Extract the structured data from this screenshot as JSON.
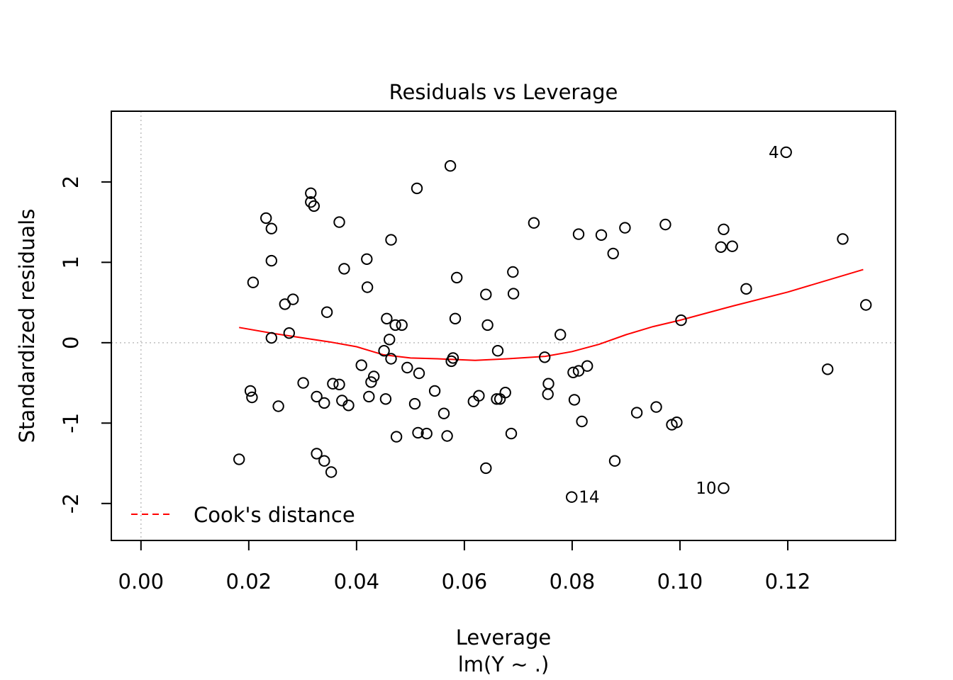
{
  "chart_data": {
    "type": "scatter",
    "title": "Residuals vs Leverage",
    "xlabel": "Leverage",
    "subtitle": "lm(Y ~ .)",
    "ylabel": "Standardized residuals",
    "xlim": [
      -0.0055,
      0.14
    ],
    "ylim": [
      -2.46,
      2.88
    ],
    "xticks": [
      0.0,
      0.02,
      0.04,
      0.06,
      0.08,
      0.1,
      0.12
    ],
    "xtick_labels": [
      "0.00",
      "0.02",
      "0.04",
      "0.06",
      "0.08",
      "0.10",
      "0.12"
    ],
    "yticks": [
      -2,
      -1,
      0,
      1,
      2
    ],
    "ytick_labels": [
      "-2",
      "-1",
      "0",
      "1",
      "2"
    ],
    "reference_lines": {
      "horizontal_y": 0,
      "vertical_x": 0
    },
    "colors": {
      "points": "#000000",
      "smooth": "#ff0000",
      "reference": "#bebebe",
      "frame": "#000000"
    },
    "legend": {
      "label": "Cook's distance",
      "position": "bottom-left",
      "line": "dashed",
      "color": "#ff0000"
    },
    "points": [
      [
        0.0182,
        -1.45
      ],
      [
        0.0203,
        -0.6
      ],
      [
        0.0206,
        -0.68
      ],
      [
        0.0208,
        0.75
      ],
      [
        0.0232,
        1.55
      ],
      [
        0.0242,
        1.42
      ],
      [
        0.0242,
        1.02
      ],
      [
        0.0242,
        0.06
      ],
      [
        0.0255,
        -0.79
      ],
      [
        0.0267,
        0.48
      ],
      [
        0.0275,
        0.12
      ],
      [
        0.0282,
        0.54
      ],
      [
        0.0301,
        -0.5
      ],
      [
        0.0315,
        1.86
      ],
      [
        0.0315,
        1.75
      ],
      [
        0.0321,
        1.7
      ],
      [
        0.0326,
        -0.67
      ],
      [
        0.0326,
        -1.38
      ],
      [
        0.034,
        -1.47
      ],
      [
        0.034,
        -0.75
      ],
      [
        0.0345,
        0.38
      ],
      [
        0.0353,
        -1.61
      ],
      [
        0.0356,
        -0.51
      ],
      [
        0.0368,
        -0.52
      ],
      [
        0.0368,
        1.5
      ],
      [
        0.0373,
        -0.72
      ],
      [
        0.0377,
        0.92
      ],
      [
        0.0385,
        -0.78
      ],
      [
        0.0409,
        -0.28
      ],
      [
        0.0419,
        1.04
      ],
      [
        0.042,
        0.69
      ],
      [
        0.0423,
        -0.67
      ],
      [
        0.0427,
        -0.49
      ],
      [
        0.0432,
        -0.42
      ],
      [
        0.0451,
        -0.1
      ],
      [
        0.0454,
        -0.7
      ],
      [
        0.0456,
        0.3
      ],
      [
        0.0461,
        0.04
      ],
      [
        0.0464,
        1.28
      ],
      [
        0.0464,
        -0.2
      ],
      [
        0.0472,
        0.22
      ],
      [
        0.0474,
        -1.17
      ],
      [
        0.0484,
        0.22
      ],
      [
        0.0494,
        -0.31
      ],
      [
        0.0508,
        -0.76
      ],
      [
        0.0512,
        1.92
      ],
      [
        0.0514,
        -1.12
      ],
      [
        0.0516,
        -0.38
      ],
      [
        0.053,
        -1.13
      ],
      [
        0.0545,
        -0.6
      ],
      [
        0.0562,
        -0.88
      ],
      [
        0.0568,
        -1.16
      ],
      [
        0.0574,
        2.2
      ],
      [
        0.0576,
        -0.23
      ],
      [
        0.0579,
        -0.19
      ],
      [
        0.0583,
        0.3
      ],
      [
        0.0586,
        0.81
      ],
      [
        0.0617,
        -0.73
      ],
      [
        0.0627,
        -0.66
      ],
      [
        0.064,
        -1.56
      ],
      [
        0.064,
        0.6
      ],
      [
        0.0643,
        0.22
      ],
      [
        0.066,
        -0.7
      ],
      [
        0.0662,
        -0.1
      ],
      [
        0.0666,
        -0.7
      ],
      [
        0.0676,
        -0.62
      ],
      [
        0.0687,
        -1.13
      ],
      [
        0.069,
        0.88
      ],
      [
        0.0691,
        0.61
      ],
      [
        0.0729,
        1.49
      ],
      [
        0.0749,
        -0.18
      ],
      [
        0.0755,
        -0.64
      ],
      [
        0.0756,
        -0.51
      ],
      [
        0.0778,
        0.1
      ],
      [
        0.0799,
        -1.92
      ],
      [
        0.0802,
        -0.37
      ],
      [
        0.0804,
        -0.71
      ],
      [
        0.0812,
        -0.35
      ],
      [
        0.0812,
        1.35
      ],
      [
        0.0818,
        -0.98
      ],
      [
        0.0828,
        -0.29
      ],
      [
        0.0854,
        1.34
      ],
      [
        0.0876,
        1.11
      ],
      [
        0.0879,
        -1.47
      ],
      [
        0.0898,
        1.43
      ],
      [
        0.092,
        -0.87
      ],
      [
        0.0956,
        -0.8
      ],
      [
        0.0973,
        1.47
      ],
      [
        0.0985,
        -1.02
      ],
      [
        0.0994,
        -0.99
      ],
      [
        0.1002,
        0.28
      ],
      [
        0.1076,
        1.19
      ],
      [
        0.1081,
        1.41
      ],
      [
        0.1081,
        -1.81
      ],
      [
        0.1097,
        1.2
      ],
      [
        0.1123,
        0.67
      ],
      [
        0.1197,
        2.37
      ],
      [
        0.1274,
        -0.33
      ],
      [
        0.1302,
        1.29
      ],
      [
        0.1345,
        0.47
      ]
    ],
    "labeled_points": [
      {
        "label": "4",
        "x": 0.1197,
        "y": 2.37,
        "side": "left"
      },
      {
        "label": "14",
        "x": 0.0799,
        "y": -1.92,
        "side": "right"
      },
      {
        "label": "10",
        "x": 0.1081,
        "y": -1.81,
        "side": "left"
      }
    ],
    "smooth_line": [
      [
        0.0182,
        0.19
      ],
      [
        0.025,
        0.11
      ],
      [
        0.03,
        0.06
      ],
      [
        0.035,
        0.01
      ],
      [
        0.04,
        -0.05
      ],
      [
        0.045,
        -0.15
      ],
      [
        0.05,
        -0.19
      ],
      [
        0.055,
        -0.2
      ],
      [
        0.062,
        -0.22
      ],
      [
        0.068,
        -0.2
      ],
      [
        0.075,
        -0.17
      ],
      [
        0.08,
        -0.11
      ],
      [
        0.085,
        -0.02
      ],
      [
        0.09,
        0.1
      ],
      [
        0.095,
        0.2
      ],
      [
        0.1,
        0.28
      ],
      [
        0.11,
        0.46
      ],
      [
        0.12,
        0.63
      ],
      [
        0.134,
        0.91
      ]
    ]
  }
}
